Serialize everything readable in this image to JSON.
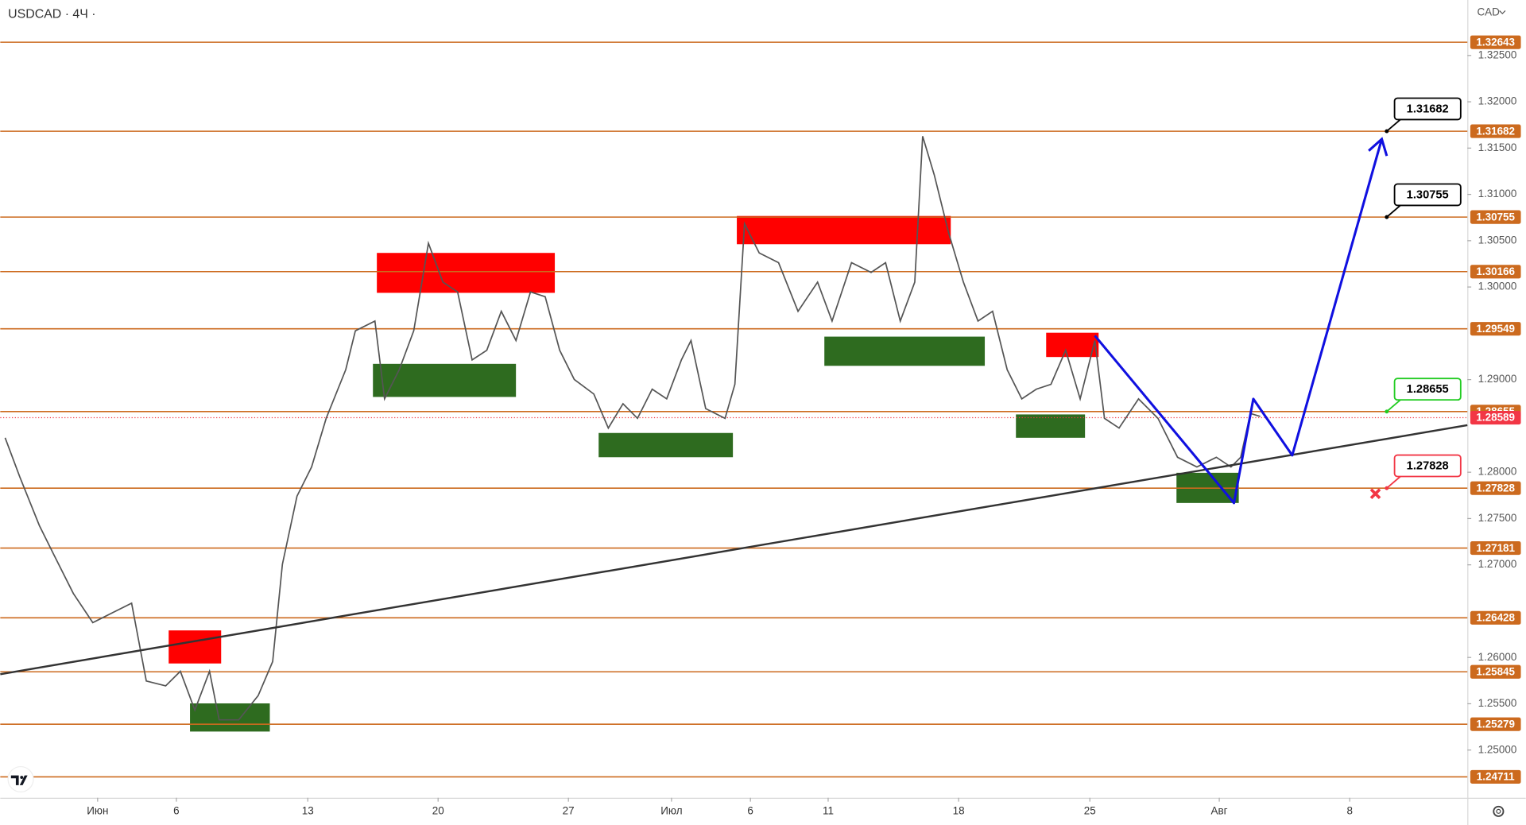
{
  "header": {
    "symbol": "USDCAD · 4Ч ·",
    "currency": "CAD"
  },
  "chart_data": {
    "type": "line",
    "color": "#555555",
    "xlim": [
      -1.346,
      9.866
    ],
    "ylim": [
      1.24485,
      1.33099
    ],
    "xticks": [
      {
        "value": -0.602,
        "label": "Июн"
      },
      {
        "value": 0,
        "label": "6"
      },
      {
        "value": 1.004,
        "label": "13"
      },
      {
        "value": 2.0,
        "label": "20"
      },
      {
        "value": 2.996,
        "label": "27"
      },
      {
        "value": 3.784,
        "label": "Июл"
      },
      {
        "value": 4.387,
        "label": "6"
      },
      {
        "value": 4.981,
        "label": "11"
      },
      {
        "value": 5.978,
        "label": "18"
      },
      {
        "value": 6.981,
        "label": "25"
      },
      {
        "value": 7.97,
        "label": "Авг"
      },
      {
        "value": 8.967,
        "label": "8"
      }
    ],
    "yticks": [
      {
        "value": 1.325,
        "label": "1.32500"
      },
      {
        "value": 1.32,
        "label": "1.32000"
      },
      {
        "value": 1.315,
        "label": "1.31500"
      },
      {
        "value": 1.31,
        "label": "1.31000"
      },
      {
        "value": 1.305,
        "label": "1.30500"
      },
      {
        "value": 1.3,
        "label": "1.30000"
      },
      {
        "value": 1.29,
        "label": "1.29000"
      },
      {
        "value": 1.28,
        "label": "1.28000"
      },
      {
        "value": 1.275,
        "label": "1.27500"
      },
      {
        "value": 1.27,
        "label": "1.27000"
      },
      {
        "value": 1.26,
        "label": "1.26000"
      },
      {
        "value": 1.255,
        "label": "1.25500"
      },
      {
        "value": 1.25,
        "label": "1.25000"
      }
    ],
    "x": [
      -1.309,
      -1.197,
      -1.048,
      -0.937,
      -0.788,
      -0.639,
      -0.491,
      -0.342,
      -0.23,
      -0.082,
      0.03,
      0.141,
      0.253,
      0.327,
      0.476,
      0.625,
      0.736,
      0.81,
      0.922,
      1.033,
      1.145,
      1.294,
      1.368,
      1.517,
      1.591,
      1.703,
      1.814,
      1.926,
      2.037,
      2.149,
      2.26,
      2.372,
      2.483,
      2.595,
      2.706,
      2.818,
      2.929,
      3.041,
      3.19,
      3.301,
      3.413,
      3.524,
      3.636,
      3.747,
      3.859,
      3.933,
      4.045,
      4.193,
      4.268,
      4.342,
      4.454,
      4.602,
      4.751,
      4.9,
      5.011,
      5.16,
      5.309,
      5.42,
      5.532,
      5.643,
      5.703,
      5.792,
      5.903,
      6.015,
      6.126,
      6.238,
      6.349,
      6.461,
      6.572,
      6.684,
      6.796,
      6.907,
      7.019,
      7.093,
      7.204,
      7.353,
      7.502,
      7.651,
      7.799,
      7.948,
      8.059,
      8.134,
      8.208,
      8.283
    ],
    "values": [
      1.28372,
      1.27952,
      1.27426,
      1.27111,
      1.26691,
      1.26376,
      1.26481,
      1.26586,
      1.25746,
      1.25693,
      1.25851,
      1.25431,
      1.25851,
      1.25326,
      1.25326,
      1.25588,
      1.25956,
      1.27006,
      1.27742,
      1.28057,
      1.28582,
      1.29107,
      1.29527,
      1.29632,
      1.28792,
      1.29107,
      1.29527,
      1.30473,
      1.30053,
      1.29947,
      1.29212,
      1.29317,
      1.29737,
      1.29422,
      1.29947,
      1.29895,
      1.29317,
      1.29002,
      1.28845,
      1.28477,
      1.28739,
      1.28582,
      1.28897,
      1.28792,
      1.29212,
      1.29422,
      1.28687,
      1.28582,
      1.2895,
      1.30683,
      1.30368,
      1.30263,
      1.29737,
      1.30053,
      1.29632,
      1.30263,
      1.30158,
      1.30263,
      1.29632,
      1.30053,
      1.31628,
      1.31208,
      1.30578,
      1.30053,
      1.29632,
      1.29737,
      1.29107,
      1.28792,
      1.28897,
      1.2895,
      1.29317,
      1.28792,
      1.29422,
      1.28582,
      1.28477,
      1.28792,
      1.28582,
      1.28162,
      1.28057,
      1.28162,
      1.28057,
      1.28162,
      1.28634,
      1.28603
    ],
    "levels": [
      1.32643,
      1.31682,
      1.30755,
      1.30166,
      1.29549,
      1.28655,
      1.27828,
      1.27181,
      1.26428,
      1.25845,
      1.25279,
      1.24711
    ],
    "level_color": "#cc6a1e",
    "last_price": 1.28589,
    "last_price_color": "#f23645",
    "zones": [
      {
        "color": "#ff0000",
        "x": [
          -0.059,
          0.342
        ],
        "y": [
          1.25935,
          1.26292
        ]
      },
      {
        "color": "#ff0000",
        "x": [
          1.532,
          2.892
        ],
        "y": [
          1.29937,
          1.30368
        ]
      },
      {
        "color": "#ff0000",
        "x": [
          4.283,
          5.918
        ],
        "y": [
          1.30462,
          1.30767
        ]
      },
      {
        "color": "#ff0000",
        "x": [
          6.647,
          7.048
        ],
        "y": [
          1.29244,
          1.29506
        ]
      },
      {
        "color": "#2e6b1f",
        "x": [
          0.104,
          0.714
        ],
        "y": [
          1.252,
          1.25504
        ]
      },
      {
        "color": "#2e6b1f",
        "x": [
          1.502,
          2.595
        ],
        "y": [
          1.28813,
          1.2917
        ]
      },
      {
        "color": "#2e6b1f",
        "x": [
          3.227,
          4.253
        ],
        "y": [
          1.28162,
          1.28424
        ]
      },
      {
        "color": "#2e6b1f",
        "x": [
          4.952,
          6.178
        ],
        "y": [
          1.29149,
          1.29464
        ]
      },
      {
        "color": "#2e6b1f",
        "x": [
          6.416,
          6.944
        ],
        "y": [
          1.28372,
          1.28624
        ]
      },
      {
        "color": "#2e6b1f",
        "x": [
          7.643,
          8.119
        ],
        "y": [
          1.27668,
          1.27994
        ]
      }
    ],
    "trendline": {
      "color": "#333333",
      "x": [
        -1.346,
        9.866
      ],
      "values": [
        1.25819,
        1.28508
      ]
    },
    "forecast": {
      "color": "#1010e0",
      "x": [
        7.019,
        8.082,
        8.23,
        8.528,
        9.212
      ],
      "values": [
        1.29475,
        1.27668,
        1.28792,
        1.28183,
        1.31597
      ]
    },
    "callouts": [
      {
        "value": 1.31682,
        "x": 9.25,
        "color": "#000000"
      },
      {
        "value": 1.30755,
        "x": 9.25,
        "color": "#000000"
      },
      {
        "value": 1.28655,
        "x": 9.25,
        "color": "#22cc22"
      },
      {
        "value": 1.27828,
        "x": 9.25,
        "color": "#f23645"
      }
    ]
  }
}
